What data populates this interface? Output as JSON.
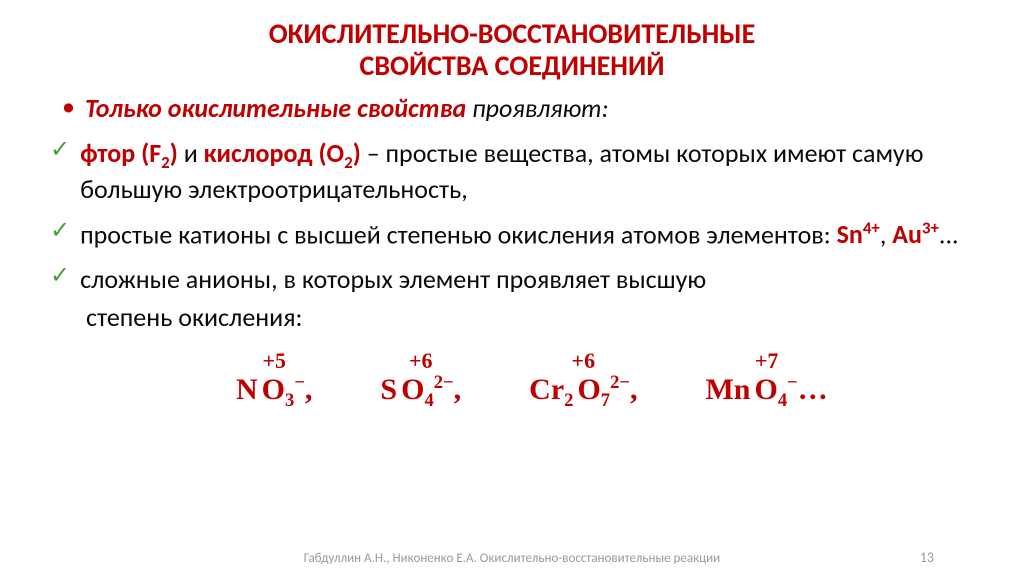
{
  "colors": {
    "red": "#c00000",
    "green": "#4f9a3f",
    "body": "#0a0a0a",
    "footer": "#9a9a9a"
  },
  "title": {
    "line1": "ОКИСЛИТЕЛЬНО-ВОССТАНОВИТЕЛЬНЫЕ",
    "line2": "СВОЙСТВА СОЕДИНЕНИЙ"
  },
  "intro": {
    "lead": "Только окислительные свойства",
    "rest": " проявляют:"
  },
  "item1": {
    "f1": "фтор (F",
    "f1sub": "2",
    "f1close": ")",
    "and": " и ",
    "o1": "кислород (О",
    "o1sub": "2",
    "o1close": ")",
    "tail": " – простые вещества, атомы которых имеют самую  большую электроотрицательность,"
  },
  "item2": {
    "text_a": "простые катионы с высшей степенью окисления атомов элементов: ",
    "sn": "Sn",
    "sn_sup": "4+",
    "sep": ", ",
    "au": "Au",
    "au_sup": "3+",
    "tail": "..."
  },
  "item3": {
    "line": "сложные анионы, в которых элемент проявляет высшую",
    "line2": "степень окисления:"
  },
  "formulas": [
    {
      "top": "+5",
      "pre": "N",
      "pre_sub": "",
      "main": "O",
      "main_sub": "3",
      "charge": "−",
      "width_adj": 0
    },
    {
      "top": "+6",
      "pre": "S",
      "pre_sub": "",
      "main": "O",
      "main_sub": "4",
      "charge": "2−",
      "width_adj": 0
    },
    {
      "top": "+6",
      "pre": "Cr",
      "pre_sub": "2",
      "main": "O",
      "main_sub": "7",
      "charge": "2−",
      "width_adj": 0
    },
    {
      "top": "+7",
      "pre": "Mn",
      "pre_sub": "",
      "main": "O",
      "main_sub": "4",
      "charge": "−",
      "width_adj": 0
    }
  ],
  "formula_tail": "…",
  "footer": "Габдуллин А.Н., Никоненко Е.А. Окислительно-восстановительные реакции",
  "page": "13"
}
